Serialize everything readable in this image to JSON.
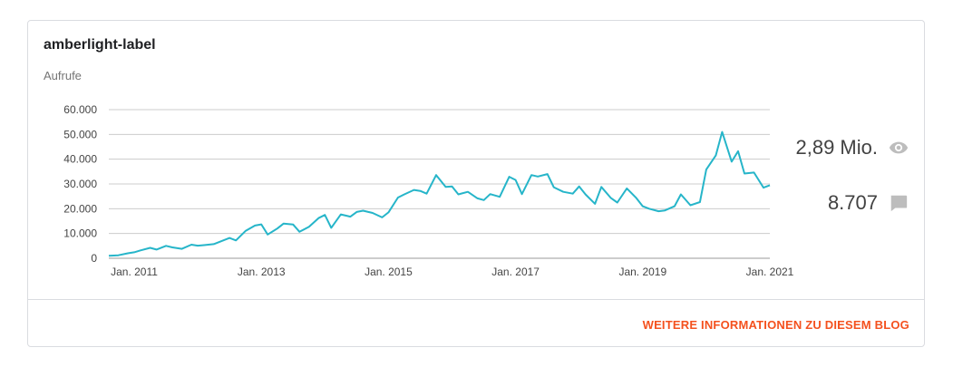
{
  "card": {
    "title": "amberlight-label",
    "series_label": "Aufrufe",
    "more_link": "WEITERE INFORMATIONEN ZU DIESEM BLOG"
  },
  "stats": {
    "views": "2,89 Mio.",
    "views_icon": "eye-icon",
    "comments": "8.707",
    "comments_icon": "comment-icon"
  },
  "colors": {
    "line": "#26b5c9",
    "grid": "#cccccc",
    "link": "#f4511e",
    "icon": "#bdbdbd"
  },
  "chart_data": {
    "type": "line",
    "title": "",
    "xlabel": "",
    "ylabel": "Aufrufe",
    "ylim": [
      0,
      60000
    ],
    "yticks": [
      0,
      10000,
      20000,
      30000,
      40000,
      50000,
      60000
    ],
    "ytick_labels": [
      "0",
      "10.000",
      "20.000",
      "30.000",
      "40.000",
      "50.000",
      "60.000"
    ],
    "xlim": [
      2010.6,
      2021
    ],
    "xticks": [
      2011,
      2013,
      2015,
      2017,
      2019,
      2021
    ],
    "xtick_labels": [
      "Jan. 2011",
      "Jan. 2013",
      "Jan. 2015",
      "Jan. 2017",
      "Jan. 2019",
      "Jan. 2021"
    ],
    "grid": true,
    "series": [
      {
        "values": [
          [
            2010.6,
            1000
          ],
          [
            2010.75,
            1200
          ],
          [
            2010.9,
            2000
          ],
          [
            2011.0,
            2400
          ],
          [
            2011.1,
            3200
          ],
          [
            2011.25,
            4200
          ],
          [
            2011.35,
            3500
          ],
          [
            2011.5,
            5000
          ],
          [
            2011.6,
            4400
          ],
          [
            2011.75,
            3800
          ],
          [
            2011.9,
            5500
          ],
          [
            2012.0,
            5100
          ],
          [
            2012.1,
            5300
          ],
          [
            2012.25,
            5700
          ],
          [
            2012.4,
            7200
          ],
          [
            2012.5,
            8200
          ],
          [
            2012.6,
            7200
          ],
          [
            2012.75,
            11000
          ],
          [
            2012.9,
            13200
          ],
          [
            2013.0,
            13700
          ],
          [
            2013.1,
            9600
          ],
          [
            2013.25,
            12000
          ],
          [
            2013.35,
            14000
          ],
          [
            2013.5,
            13600
          ],
          [
            2013.6,
            10700
          ],
          [
            2013.75,
            12700
          ],
          [
            2013.9,
            16200
          ],
          [
            2014.0,
            17500
          ],
          [
            2014.1,
            12300
          ],
          [
            2014.25,
            17700
          ],
          [
            2014.4,
            16800
          ],
          [
            2014.5,
            18700
          ],
          [
            2014.6,
            19200
          ],
          [
            2014.75,
            18300
          ],
          [
            2014.9,
            16500
          ],
          [
            2015.0,
            18500
          ],
          [
            2015.15,
            24500
          ],
          [
            2015.25,
            25800
          ],
          [
            2015.4,
            27600
          ],
          [
            2015.5,
            27200
          ],
          [
            2015.6,
            26100
          ],
          [
            2015.75,
            33600
          ],
          [
            2015.9,
            28800
          ],
          [
            2016.0,
            29000
          ],
          [
            2016.1,
            25800
          ],
          [
            2016.25,
            26800
          ],
          [
            2016.4,
            24200
          ],
          [
            2016.5,
            23500
          ],
          [
            2016.6,
            25900
          ],
          [
            2016.75,
            24800
          ],
          [
            2016.9,
            32900
          ],
          [
            2017.0,
            31600
          ],
          [
            2017.1,
            25900
          ],
          [
            2017.25,
            33600
          ],
          [
            2017.35,
            33000
          ],
          [
            2017.5,
            34000
          ],
          [
            2017.6,
            28700
          ],
          [
            2017.75,
            26800
          ],
          [
            2017.9,
            26100
          ],
          [
            2018.0,
            29000
          ],
          [
            2018.1,
            25800
          ],
          [
            2018.25,
            22000
          ],
          [
            2018.35,
            28800
          ],
          [
            2018.5,
            24300
          ],
          [
            2018.6,
            22500
          ],
          [
            2018.75,
            28200
          ],
          [
            2018.9,
            24300
          ],
          [
            2019.0,
            21000
          ],
          [
            2019.1,
            20000
          ],
          [
            2019.25,
            19000
          ],
          [
            2019.35,
            19300
          ],
          [
            2019.5,
            21000
          ],
          [
            2019.6,
            25800
          ],
          [
            2019.75,
            21400
          ],
          [
            2019.9,
            22700
          ],
          [
            2020.0,
            35800
          ],
          [
            2020.15,
            41500
          ],
          [
            2020.25,
            51000
          ],
          [
            2020.4,
            39000
          ],
          [
            2020.5,
            43200
          ],
          [
            2020.6,
            34200
          ],
          [
            2020.75,
            34600
          ],
          [
            2020.9,
            28500
          ],
          [
            2021.0,
            29500
          ]
        ]
      }
    ]
  }
}
